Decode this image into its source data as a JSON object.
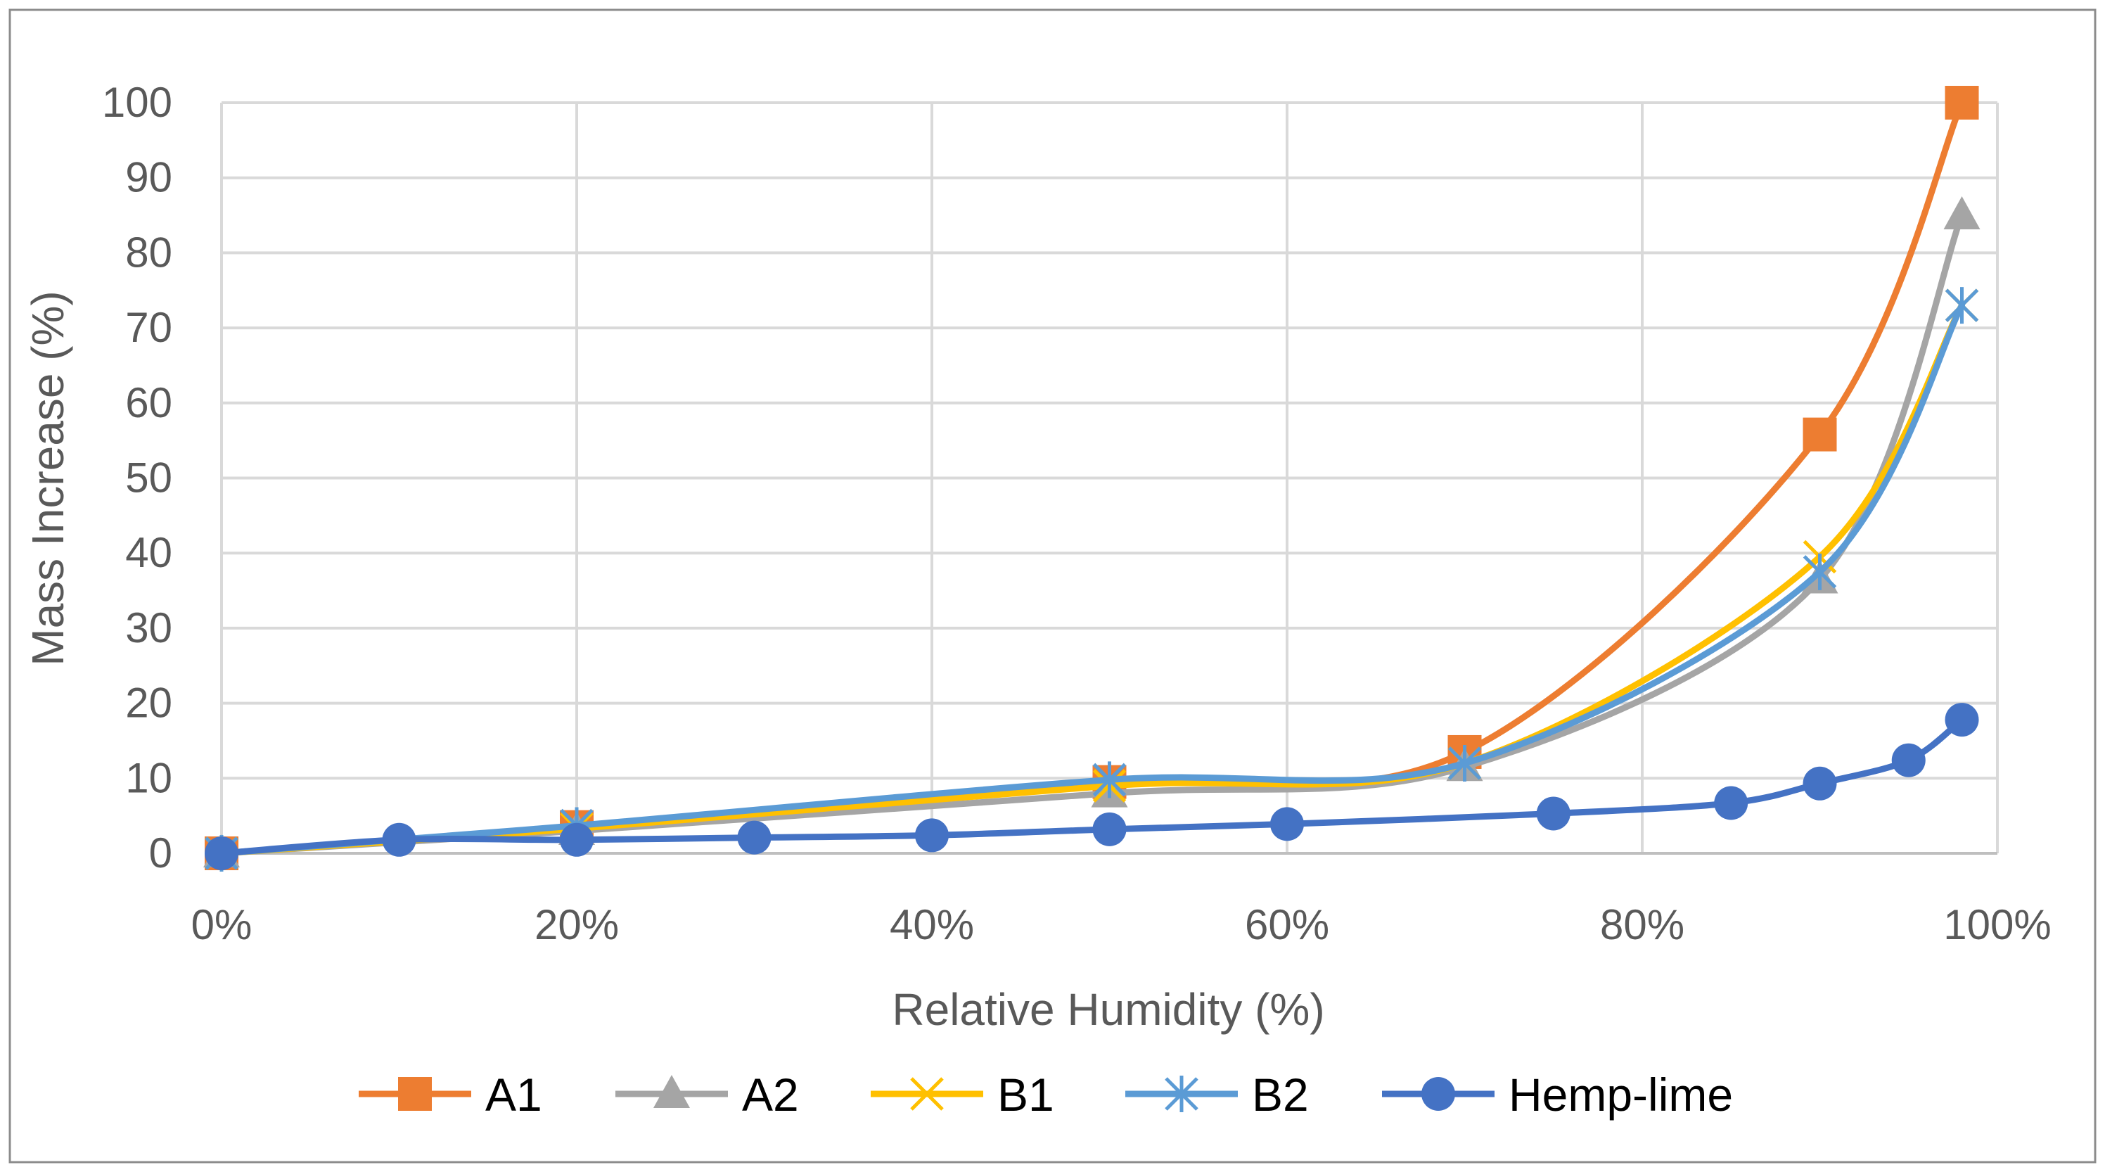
{
  "chart_data": {
    "type": "line",
    "smooth": true,
    "title": "",
    "xlabel": "Relative Humidity (%)",
    "ylabel": "Mass Increase (%)",
    "xlim": [
      0,
      100
    ],
    "ylim": [
      0,
      100
    ],
    "x_ticks": [
      0,
      20,
      40,
      60,
      80,
      100
    ],
    "x_tick_labels": [
      "0%",
      "20%",
      "40%",
      "60%",
      "80%",
      "100%"
    ],
    "y_ticks": [
      0,
      10,
      20,
      30,
      40,
      50,
      60,
      70,
      80,
      90,
      100
    ],
    "y_tick_labels": [
      "0",
      "10",
      "20",
      "30",
      "40",
      "50",
      "60",
      "70",
      "80",
      "90",
      "100"
    ],
    "grid": true,
    "legend_position": "bottom",
    "series": [
      {
        "name": "A1",
        "color": "#ED7D31",
        "marker": "square",
        "x": [
          0,
          20,
          50,
          70,
          90,
          98
        ],
        "y": [
          0,
          3.5,
          9.5,
          13.5,
          55.8,
          100
        ]
      },
      {
        "name": "A2",
        "color": "#A5A5A5",
        "marker": "triangle",
        "x": [
          0,
          20,
          50,
          70,
          90,
          98
        ],
        "y": [
          0,
          3,
          8,
          11.5,
          36.5,
          85
        ]
      },
      {
        "name": "B1",
        "color": "#FFC000",
        "marker": "x",
        "x": [
          0,
          20,
          50,
          70,
          90,
          98
        ],
        "y": [
          0,
          3.3,
          9,
          12,
          39.5,
          73
        ]
      },
      {
        "name": "B2",
        "color": "#5B9BD5",
        "marker": "asterisk",
        "x": [
          0,
          20,
          50,
          70,
          90,
          98
        ],
        "y": [
          0,
          3.7,
          9.8,
          12,
          37.5,
          73
        ]
      },
      {
        "name": "Hemp-lime",
        "color": "#4472C4",
        "marker": "circle",
        "x": [
          0,
          10,
          20,
          30,
          40,
          50,
          60,
          75,
          85,
          90,
          95,
          98
        ],
        "y": [
          0,
          1.8,
          1.8,
          2.1,
          2.4,
          3.2,
          3.9,
          5.3,
          6.7,
          9.3,
          12.4,
          17.8
        ]
      }
    ]
  }
}
